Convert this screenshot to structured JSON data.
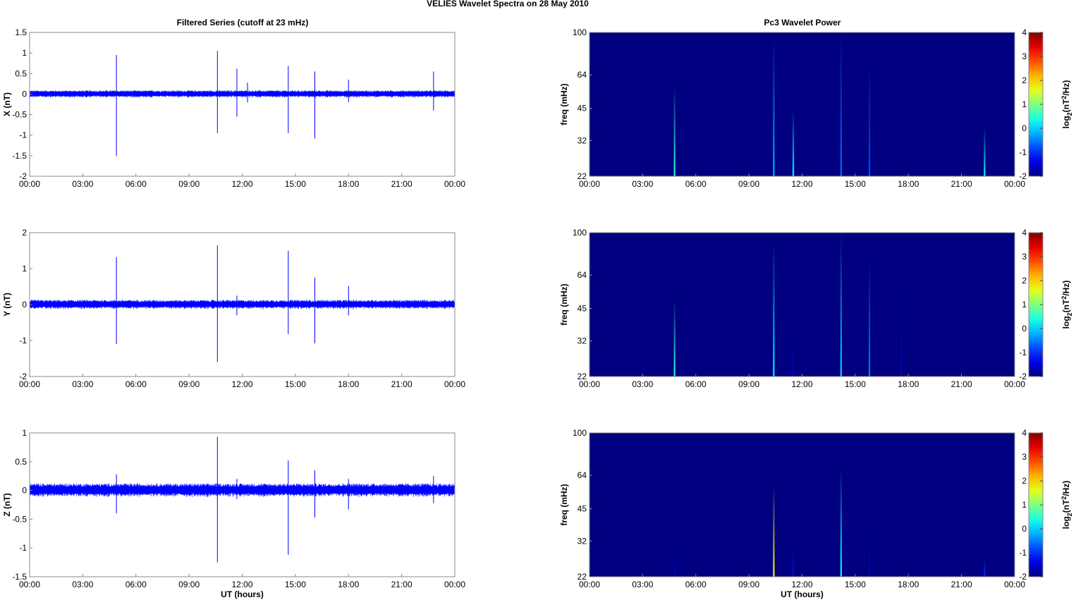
{
  "figure": {
    "suptitle": "VELIES Wavelet Spectra on 28 May      2010",
    "left_column_title": "Filtered Series (cutoff at 23 mHz)",
    "right_column_title": "Pc3 Wavelet Power"
  },
  "chart_data": [
    {
      "type": "line",
      "title": "Filtered Series (cutoff at 23 mHz)",
      "xlabel": "",
      "ylabel": "X (nT)",
      "x_ticks": [
        "00:00",
        "03:00",
        "06:00",
        "09:00",
        "12:00",
        "15:00",
        "18:00",
        "21:00",
        "00:00"
      ],
      "xlim_hours": [
        0,
        24
      ],
      "y_ticks": [
        "1.5",
        "1",
        "0.5",
        "0",
        "-0.5",
        "-1",
        "-1.5",
        "-2"
      ],
      "y_tick_values": [
        1.5,
        1,
        0.5,
        0,
        -0.5,
        -1,
        -1.5,
        -2
      ],
      "ylim": [
        -2,
        1.5
      ],
      "line_color": "#0000ff",
      "noise_amplitude": 0.09,
      "spikes": [
        {
          "t": 4.9,
          "max": 0.95,
          "min": -1.5
        },
        {
          "t": 10.6,
          "max": 1.05,
          "min": -0.95
        },
        {
          "t": 11.7,
          "max": 0.62,
          "min": -0.55
        },
        {
          "t": 12.3,
          "max": 0.28,
          "min": -0.2
        },
        {
          "t": 14.6,
          "max": 0.68,
          "min": -0.95
        },
        {
          "t": 16.1,
          "max": 0.55,
          "min": -1.08
        },
        {
          "t": 18.0,
          "max": 0.35,
          "min": -0.2
        },
        {
          "t": 22.8,
          "max": 0.55,
          "min": -0.4
        }
      ]
    },
    {
      "type": "line",
      "xlabel": "",
      "ylabel": "Y (nT)",
      "x_ticks": [
        "00:00",
        "03:00",
        "06:00",
        "09:00",
        "12:00",
        "15:00",
        "18:00",
        "21:00",
        "00:00"
      ],
      "xlim_hours": [
        0,
        24
      ],
      "y_ticks": [
        "2",
        "1",
        "0",
        "-1",
        "-2"
      ],
      "y_tick_values": [
        2,
        1,
        0,
        -1,
        -2
      ],
      "ylim": [
        -2,
        2
      ],
      "line_color": "#0000ff",
      "noise_amplitude": 0.13,
      "spikes": [
        {
          "t": 4.9,
          "max": 1.32,
          "min": -1.1
        },
        {
          "t": 10.6,
          "max": 1.65,
          "min": -1.6
        },
        {
          "t": 11.7,
          "max": 0.25,
          "min": -0.3
        },
        {
          "t": 14.6,
          "max": 1.5,
          "min": -0.82
        },
        {
          "t": 16.1,
          "max": 0.75,
          "min": -1.08
        },
        {
          "t": 18.0,
          "max": 0.52,
          "min": -0.3
        }
      ]
    },
    {
      "type": "line",
      "xlabel": "UT (hours)",
      "ylabel": "Z (nT)",
      "x_ticks": [
        "00:00",
        "03:00",
        "06:00",
        "09:00",
        "12:00",
        "15:00",
        "18:00",
        "21:00",
        "00:00"
      ],
      "xlim_hours": [
        0,
        24
      ],
      "y_ticks": [
        "1",
        "0.5",
        "0",
        "-0.5",
        "-1",
        "-1.5"
      ],
      "y_tick_values": [
        1,
        0.5,
        0,
        -0.5,
        -1,
        -1.5
      ],
      "ylim": [
        -1.5,
        1
      ],
      "line_color": "#0000ff",
      "noise_amplitude": 0.12,
      "spikes": [
        {
          "t": 4.9,
          "max": 0.28,
          "min": -0.4
        },
        {
          "t": 10.6,
          "max": 0.93,
          "min": -1.25
        },
        {
          "t": 11.7,
          "max": 0.2,
          "min": -0.15
        },
        {
          "t": 14.6,
          "max": 0.52,
          "min": -1.12
        },
        {
          "t": 16.1,
          "max": 0.35,
          "min": -0.47
        },
        {
          "t": 18.0,
          "max": 0.2,
          "min": -0.33
        },
        {
          "t": 22.8,
          "max": 0.25,
          "min": -0.22
        }
      ]
    },
    {
      "type": "heatmap",
      "title": "Pc3 Wavelet Power",
      "xlabel": "",
      "ylabel": "freq (mHz)",
      "x_ticks": [
        "00:00",
        "03:00",
        "06:00",
        "09:00",
        "12:00",
        "15:00",
        "18:00",
        "21:00",
        "00:00"
      ],
      "xlim_hours": [
        0,
        24
      ],
      "y_ticks": [
        "100",
        "64",
        "45",
        "32",
        "22"
      ],
      "y_tick_values": [
        100,
        64,
        45,
        32,
        22
      ],
      "ylim": [
        22,
        100
      ],
      "y_scale": "log",
      "background_value": -2,
      "colorbar_label": "log2(nT^2/Hz)",
      "colorbar_ticks": [
        "4",
        "3",
        "2",
        "1",
        "0",
        "-1",
        "-2"
      ],
      "colorbar_range": [
        -2,
        4
      ],
      "colormap": "jet",
      "streaks": [
        {
          "t": 4.8,
          "f_top": 58,
          "value": 0.5
        },
        {
          "t": 10.4,
          "f_top": 95,
          "value": -0.2
        },
        {
          "t": 11.5,
          "f_top": 45,
          "value": 0.2
        },
        {
          "t": 14.2,
          "f_top": 100,
          "value": -0.6
        },
        {
          "t": 15.8,
          "f_top": 75,
          "value": -0.8
        },
        {
          "t": 22.3,
          "f_top": 37,
          "value": 0.3
        }
      ]
    },
    {
      "type": "heatmap",
      "xlabel": "",
      "ylabel": "freq (mHz)",
      "x_ticks": [
        "00:00",
        "03:00",
        "06:00",
        "09:00",
        "12:00",
        "15:00",
        "18:00",
        "21:00",
        "00:00"
      ],
      "xlim_hours": [
        0,
        24
      ],
      "y_ticks": [
        "100",
        "64",
        "45",
        "32",
        "22"
      ],
      "y_tick_values": [
        100,
        64,
        45,
        32,
        22
      ],
      "ylim": [
        22,
        100
      ],
      "y_scale": "log",
      "background_value": -2,
      "colorbar_label": "log2(nT^2/Hz)",
      "colorbar_ticks": [
        "4",
        "3",
        "2",
        "1",
        "0",
        "-1",
        "-2"
      ],
      "colorbar_range": [
        -2,
        4
      ],
      "colormap": "jet",
      "streaks": [
        {
          "t": 4.8,
          "f_top": 50,
          "value": 0.5
        },
        {
          "t": 10.4,
          "f_top": 90,
          "value": 0.2
        },
        {
          "t": 11.5,
          "f_top": 35,
          "value": -1.5
        },
        {
          "t": 14.2,
          "f_top": 100,
          "value": 0.0
        },
        {
          "t": 15.8,
          "f_top": 75,
          "value": -0.5
        },
        {
          "t": 17.6,
          "f_top": 55,
          "value": -1.6
        }
      ]
    },
    {
      "type": "heatmap",
      "xlabel": "UT (hours)",
      "ylabel": "freq (mHz)",
      "x_ticks": [
        "00:00",
        "03:00",
        "06:00",
        "09:00",
        "12:00",
        "15:00",
        "18:00",
        "21:00",
        "00:00"
      ],
      "xlim_hours": [
        0,
        24
      ],
      "y_ticks": [
        "100",
        "64",
        "45",
        "32",
        "22"
      ],
      "y_tick_values": [
        100,
        64,
        45,
        32,
        22
      ],
      "ylim": [
        22,
        100
      ],
      "y_scale": "log",
      "background_value": -2,
      "colorbar_label": "log2(nT^2/Hz)",
      "colorbar_ticks": [
        "4",
        "3",
        "2",
        "1",
        "0",
        "-1",
        "-2"
      ],
      "colorbar_range": [
        -2,
        4
      ],
      "colormap": "jet",
      "streaks": [
        {
          "t": 4.8,
          "f_top": 30,
          "value": -1.6
        },
        {
          "t": 10.4,
          "f_top": 58,
          "value": 1.8
        },
        {
          "t": 11.5,
          "f_top": 30,
          "value": -1.2
        },
        {
          "t": 14.2,
          "f_top": 70,
          "value": 0.3
        },
        {
          "t": 15.8,
          "f_top": 40,
          "value": -1.6
        },
        {
          "t": 22.3,
          "f_top": 27,
          "value": -1.0
        }
      ]
    }
  ]
}
